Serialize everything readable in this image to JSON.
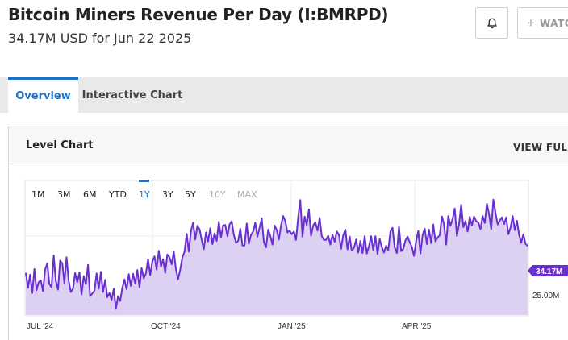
{
  "header": {
    "title": "Bitcoin Miners Revenue Per Day (I:BMRPD)",
    "subtitle": "34.17M USD for Jun 22 2025",
    "watch_label": "WATC"
  },
  "icons": {
    "bell": "bell-icon",
    "plus": "plus-icon"
  },
  "tabs": [
    {
      "label": "Overview",
      "active": true
    },
    {
      "label": "Interactive Chart",
      "active": false
    }
  ],
  "panel": {
    "title": "Level Chart",
    "view_full": "VIEW FULL C"
  },
  "ranges": [
    {
      "label": "1M",
      "state": "normal"
    },
    {
      "label": "3M",
      "state": "normal"
    },
    {
      "label": "6M",
      "state": "normal"
    },
    {
      "label": "YTD",
      "state": "normal"
    },
    {
      "label": "1Y",
      "state": "active"
    },
    {
      "label": "3Y",
      "state": "normal"
    },
    {
      "label": "5Y",
      "state": "normal"
    },
    {
      "label": "10Y",
      "state": "disabled"
    },
    {
      "label": "MAX",
      "state": "disabled"
    }
  ],
  "colors": {
    "accent": "#1a73c9",
    "series_line": "#6a2fd1",
    "series_fill": "#dcd0f3"
  },
  "chart_data": {
    "type": "area",
    "title": "",
    "xlabel": "",
    "ylabel": "",
    "unit": "USD",
    "x_tick_labels": [
      "JUL '24",
      "OCT '24",
      "JAN '25",
      "APR '25"
    ],
    "y_tick_labels": [
      "25.00M"
    ],
    "current_value_label": "34.17M",
    "ylim": [
      19.5,
      48
    ],
    "grid": true,
    "series": [
      {
        "values": [
          28.5,
          25.3,
          28.1,
          24.2,
          29.3,
          24.8,
          26.5,
          26.9,
          24.6,
          29.2,
          30.5,
          26.1,
          25.4,
          32.2,
          26.8,
          24.9,
          31.1,
          30.5,
          26.3,
          31.8,
          26.7,
          24.4,
          25.1,
          28.5,
          26.5,
          28.6,
          23.9,
          27.8,
          26.1,
          30.2,
          23.5,
          24.1,
          24.7,
          28.4,
          25.1,
          28.7,
          24.4,
          27.0,
          23.3,
          24.2,
          22.7,
          25.1,
          20.8,
          23.5,
          22.5,
          25.3,
          27.1,
          25.0,
          28.2,
          25.7,
          28.3,
          26.2,
          29.1,
          25.4,
          29.5,
          27.3,
          28.4,
          31.4,
          28.0,
          30.9,
          32.0,
          29.2,
          33.2,
          29.8,
          31.4,
          28.5,
          32.4,
          31.8,
          30.3,
          33.0,
          29.2,
          27.1,
          29.2,
          31.7,
          33.0,
          36.8,
          33.0,
          37.4,
          39.2,
          35.6,
          38.5,
          37.8,
          35.5,
          33.5,
          37.1,
          35.2,
          38.0,
          34.6,
          36.9,
          35.3,
          39.4,
          36.0,
          38.6,
          38.7,
          36.3,
          38.8,
          39.5,
          36.6,
          34.9,
          35.3,
          37.9,
          34.3,
          34.3,
          39.0,
          34.7,
          36.6,
          37.3,
          39.2,
          36.2,
          38.1,
          40.1,
          35.0,
          33.9,
          37.7,
          36.4,
          34.5,
          38.6,
          37.6,
          35.6,
          38.6,
          40.6,
          39.5,
          37.1,
          37.5,
          36.7,
          37.3,
          35.5,
          40.4,
          44.0,
          36.2,
          40.5,
          38.7,
          42.0,
          36.4,
          38.6,
          39.3,
          37.5,
          40.2,
          36.3,
          35.5,
          35.5,
          36.4,
          34.5,
          36.6,
          35.1,
          37.3,
          36.6,
          33.6,
          36.5,
          37.7,
          33.5,
          36.2,
          33.2,
          33.8,
          35.6,
          32.8,
          35.3,
          32.7,
          36.3,
          32.6,
          34.2,
          36.3,
          33.3,
          36.3,
          32.5,
          35.7,
          34.0,
          32.8,
          34.3,
          33.3,
          37.3,
          38.1,
          33.9,
          32.7,
          38.4,
          33.1,
          33.6,
          35.4,
          36.2,
          35.0,
          34.0,
          32.1,
          35.3,
          37.4,
          32.6,
          36.6,
          37.9,
          34.6,
          37.7,
          34.8,
          38.8,
          35.2,
          36.0,
          36.5,
          40.5,
          38.9,
          34.5,
          40.6,
          38.5,
          40.0,
          42.2,
          36.3,
          38.8,
          43.0,
          38.2,
          39.5,
          37.3,
          40.4,
          38.6,
          40.5,
          39.5,
          39.2,
          37.8,
          40.6,
          39.1,
          43.2,
          41.0,
          37.8,
          44.1,
          41.3,
          38.8,
          39.6,
          40.3,
          38.9,
          40.3,
          36.7,
          38.1,
          40.6,
          37.6,
          39.6,
          36.6,
          34.9,
          36.7,
          34.7,
          34.2
        ]
      }
    ]
  }
}
